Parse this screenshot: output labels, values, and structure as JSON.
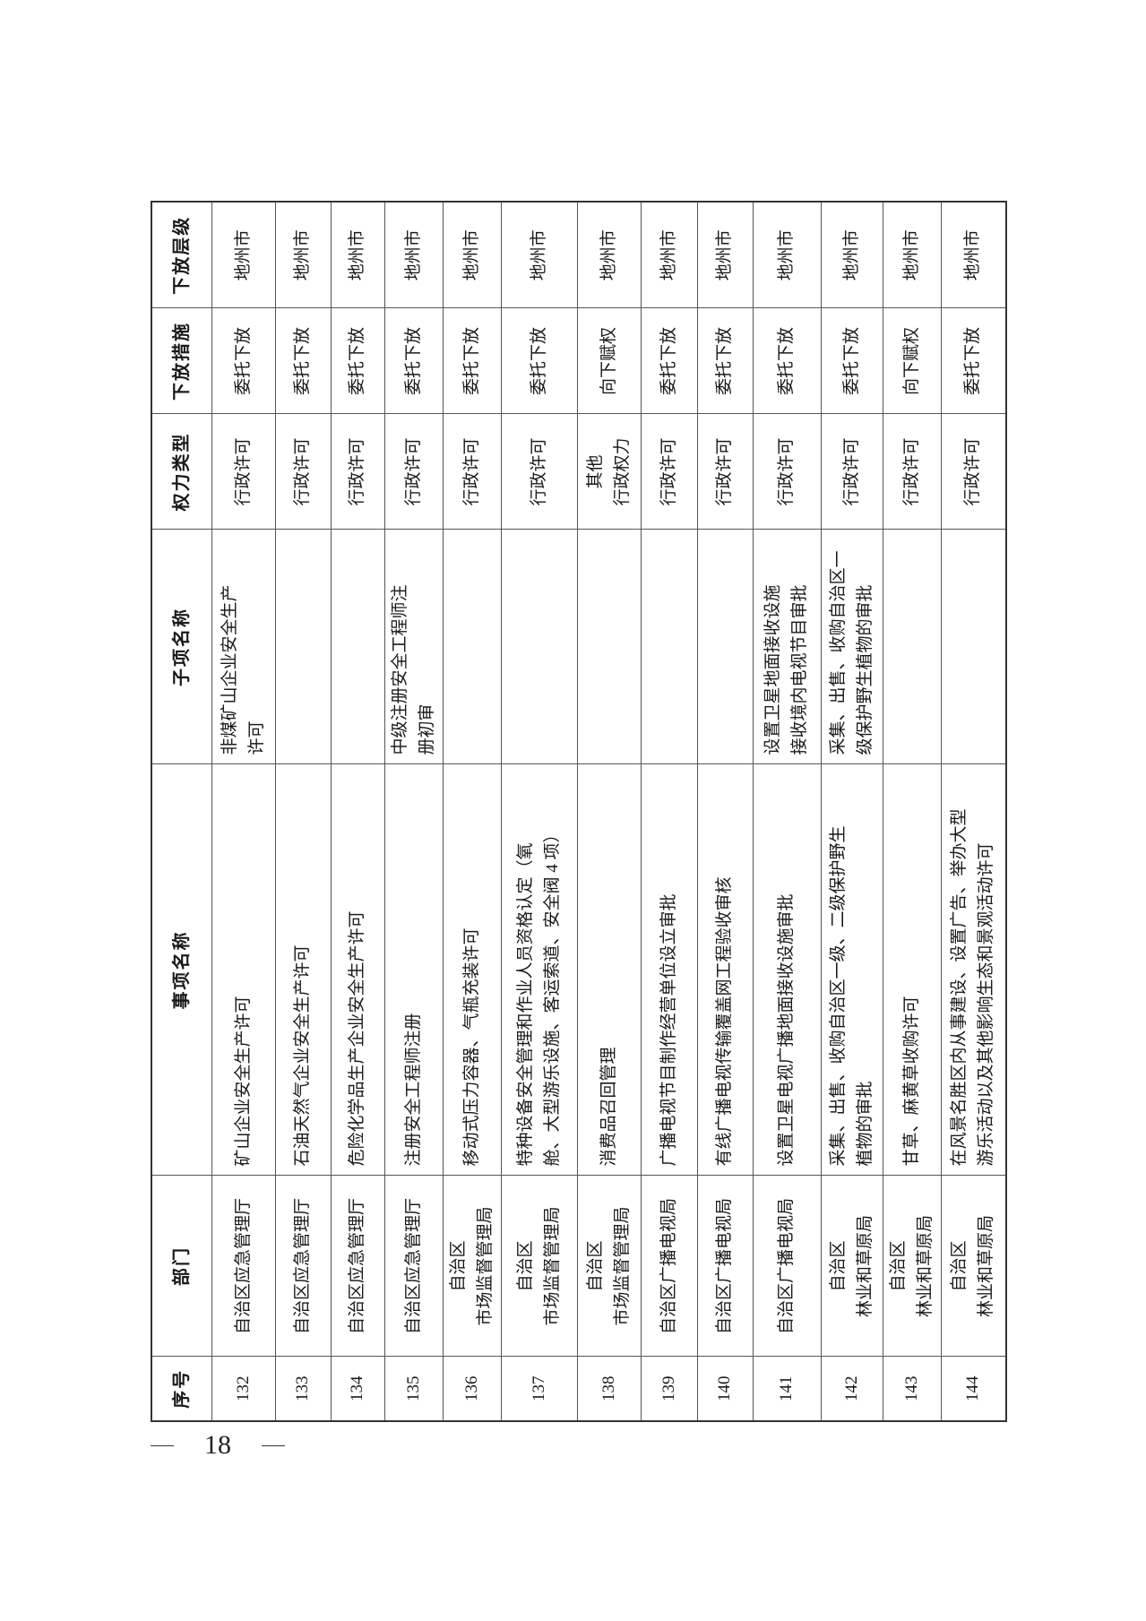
{
  "table": {
    "headers": [
      "序号",
      "部门",
      "事项名称",
      "子项名称",
      "权力类型",
      "下放措施",
      "下放层级"
    ],
    "rows": [
      [
        "132",
        "自治区应急管理厅",
        "矿山企业安全生产许可",
        "非煤矿山企业安全生产\n许可",
        "行政许可",
        "委托下放",
        "地州市"
      ],
      [
        "133",
        "自治区应急管理厅",
        "石油天然气企业安全生产许可",
        "",
        "行政许可",
        "委托下放",
        "地州市"
      ],
      [
        "134",
        "自治区应急管理厅",
        "危险化学品生产企业安全生产许可",
        "",
        "行政许可",
        "委托下放",
        "地州市"
      ],
      [
        "135",
        "自治区应急管理厅",
        "注册安全工程师注册",
        "中级注册安全工程师注\n册初审",
        "行政许可",
        "委托下放",
        "地州市"
      ],
      [
        "136",
        "自治区\n市场监督管理局",
        "移动式压力容器、气瓶充装许可",
        "",
        "行政许可",
        "委托下放",
        "地州市"
      ],
      [
        "137",
        "自治区\n市场监督管理局",
        "特种设备安全管理和作业人员资格认定（氧\n舱、大型游乐设施、客运索道、安全阀 4 项）",
        "",
        "行政许可",
        "委托下放",
        "地州市"
      ],
      [
        "138",
        "自治区\n市场监督管理局",
        "消费品召回管理",
        "",
        "其他\n行政权力",
        "向下赋权",
        "地州市"
      ],
      [
        "139",
        "自治区广播电视局",
        "广播电视节目制作经营单位设立审批",
        "",
        "行政许可",
        "委托下放",
        "地州市"
      ],
      [
        "140",
        "自治区广播电视局",
        "有线广播电视传输覆盖网工程验收审核",
        "",
        "行政许可",
        "委托下放",
        "地州市"
      ],
      [
        "141",
        "自治区广播电视局",
        "设置卫星电视广播地面接收设施审批",
        "设置卫星地面接收设施\n接收境内电视节目审批",
        "行政许可",
        "委托下放",
        "地州市"
      ],
      [
        "142",
        "自治区\n林业和草原局",
        "采集、出售、收购自治区一级、二级保护野生\n植物的审批",
        "采集、出售、收购自治区一\n级保护野生植物的审批",
        "行政许可",
        "委托下放",
        "地州市"
      ],
      [
        "143",
        "自治区\n林业和草原局",
        "甘草、麻黄草收购许可",
        "",
        "行政许可",
        "向下赋权",
        "地州市"
      ],
      [
        "144",
        "自治区\n林业和草原局",
        "在风景名胜区内从事建设、设置广告、举办大型\n游乐活动以及其他影响生态和景观活动许可",
        "",
        "行政许可",
        "委托下放",
        "地州市"
      ]
    ]
  },
  "page_number": "18"
}
